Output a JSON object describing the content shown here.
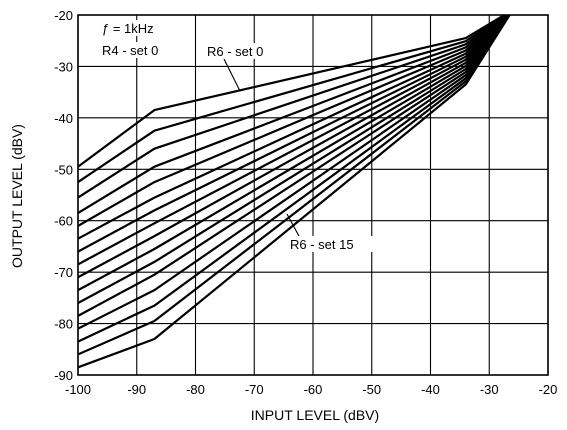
{
  "chart_data": {
    "type": "line",
    "xlabel": "INPUT LEVEL (dBV)",
    "ylabel": "OUTPUT LEVEL (dBV)",
    "xlim": [
      -100,
      -20
    ],
    "ylim": [
      -90,
      -20
    ],
    "x_ticks": [
      "-100",
      "-90",
      "-80",
      "-70",
      "-60",
      "-50",
      "-40",
      "-30",
      "-20"
    ],
    "y_ticks": [
      "-20",
      "-30",
      "-40",
      "-50",
      "-60",
      "-70",
      "-80",
      "-90"
    ],
    "grid": true,
    "annotations": [
      {
        "text": "ƒ = 1kHz"
      },
      {
        "text": "R4 - set 0"
      },
      {
        "text": "R6 - set 0"
      },
      {
        "text": "R6 - set 15"
      }
    ],
    "series": [
      {
        "x": [
          -100,
          -87,
          -34,
          -26
        ],
        "y": [
          -49.5,
          -38.5,
          -24.5,
          -19
        ]
      },
      {
        "x": [
          -100,
          -87,
          -34,
          -26
        ],
        "y": [
          -52.5,
          -42.5,
          -25.1,
          -19
        ]
      },
      {
        "x": [
          -100,
          -87,
          -34,
          -26
        ],
        "y": [
          -55.5,
          -46.0,
          -25.7,
          -19
        ]
      },
      {
        "x": [
          -100,
          -87,
          -34,
          -26
        ],
        "y": [
          -58.5,
          -49.5,
          -26.3,
          -19
        ]
      },
      {
        "x": [
          -100,
          -87,
          -34,
          -26
        ],
        "y": [
          -61.0,
          -52.5,
          -26.9,
          -19
        ]
      },
      {
        "x": [
          -100,
          -87,
          -34,
          -26
        ],
        "y": [
          -63.5,
          -55.5,
          -27.5,
          -19
        ]
      },
      {
        "x": [
          -100,
          -87,
          -34,
          -26
        ],
        "y": [
          -66.0,
          -58.0,
          -28.1,
          -19
        ]
      },
      {
        "x": [
          -100,
          -87,
          -34,
          -26
        ],
        "y": [
          -68.5,
          -60.5,
          -28.7,
          -19
        ]
      },
      {
        "x": [
          -100,
          -87,
          -34,
          -26
        ],
        "y": [
          -71.0,
          -63.0,
          -29.3,
          -19
        ]
      },
      {
        "x": [
          -100,
          -87,
          -34,
          -26
        ],
        "y": [
          -73.5,
          -65.5,
          -29.9,
          -19
        ]
      },
      {
        "x": [
          -100,
          -87,
          -34,
          -26
        ],
        "y": [
          -76.0,
          -68.0,
          -30.5,
          -19
        ]
      },
      {
        "x": [
          -100,
          -87,
          -34,
          -26
        ],
        "y": [
          -78.5,
          -70.5,
          -31.1,
          -19
        ]
      },
      {
        "x": [
          -100,
          -87,
          -34,
          -26
        ],
        "y": [
          -81.0,
          -73.5,
          -31.7,
          -19
        ]
      },
      {
        "x": [
          -100,
          -87,
          -34,
          -26
        ],
        "y": [
          -83.5,
          -76.5,
          -32.3,
          -19
        ]
      },
      {
        "x": [
          -100,
          -87,
          -34,
          -26
        ],
        "y": [
          -86.0,
          -79.5,
          -32.9,
          -19
        ]
      },
      {
        "x": [
          -100,
          -87,
          -34,
          -26
        ],
        "y": [
          -88.5,
          -83.0,
          -33.5,
          -19
        ]
      }
    ]
  }
}
